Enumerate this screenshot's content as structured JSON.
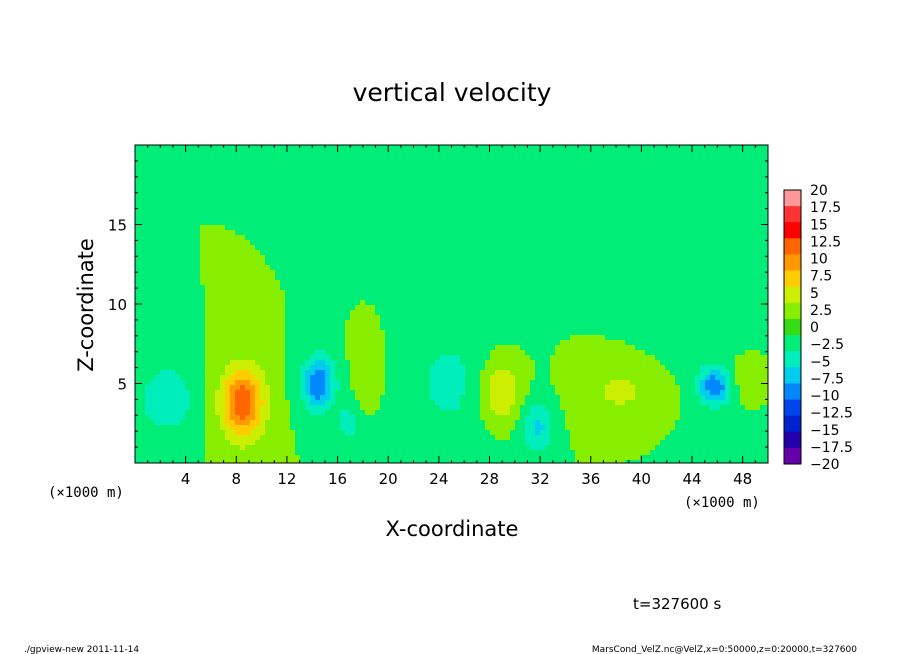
{
  "chart_data": {
    "type": "heatmap",
    "title": "vertical velocity",
    "xlabel": "X-coordinate",
    "ylabel": "Z-coordinate",
    "x_unit_label": "(×1000 m)",
    "y_unit_label": "(×1000 m)",
    "xlim": [
      0,
      50
    ],
    "ylim": [
      0,
      20
    ],
    "x_ticks": [
      4,
      8,
      12,
      16,
      20,
      24,
      28,
      32,
      36,
      40,
      44,
      48
    ],
    "y_ticks": [
      5,
      10,
      15
    ],
    "time_label": "t=327600 s",
    "colorbar": {
      "levels": [
        20,
        17.5,
        15,
        12.5,
        10,
        7.5,
        5,
        2.5,
        0,
        -2.5,
        -5,
        -7.5,
        -10,
        -12.5,
        -15,
        -17.5,
        -20
      ],
      "level_labels": [
        "20",
        "17.5",
        "15",
        "12.5",
        "10",
        "7.5",
        "5",
        "2.5",
        "0",
        "−2.5",
        "−5",
        "−7.5",
        "−10",
        "−12.5",
        "−15",
        "−17.5",
        "−20"
      ],
      "colors": [
        "#ff9999",
        "#ff3333",
        "#ff0000",
        "#ff6600",
        "#ff9900",
        "#ffcc00",
        "#ccee00",
        "#88ee00",
        "#33dd11",
        "#00ee77",
        "#00eebb",
        "#00ccee",
        "#0088ff",
        "#0044ee",
        "#0022cc",
        "#2200aa",
        "#6600aa"
      ]
    },
    "features": [
      {
        "x": 8.5,
        "z": 3.8,
        "w_peak": 12,
        "sx": 1.2,
        "sz": 1.6
      },
      {
        "x": 28.8,
        "z": 4.5,
        "w_peak": 6,
        "sx": 1.2,
        "sz": 1.5
      },
      {
        "x": 38.5,
        "z": 4.5,
        "w_peak": 3,
        "sx": 2.5,
        "sz": 1.5
      },
      {
        "x": 14.5,
        "z": 5.0,
        "w_peak": -10,
        "sx": 0.9,
        "sz": 1.2
      },
      {
        "x": 45.8,
        "z": 4.8,
        "w_peak": -9,
        "sx": 0.9,
        "sz": 0.8
      },
      {
        "x": 2.5,
        "z": 4.0,
        "w_peak": -5,
        "sx": 1.5,
        "sz": 1.5
      },
      {
        "x": 31.8,
        "z": 2.2,
        "w_peak": -5.5,
        "sx": 0.9,
        "sz": 1.2
      },
      {
        "x": 16.8,
        "z": 2.5,
        "w_peak": -4,
        "sx": 0.6,
        "sz": 0.8
      },
      {
        "x": 25.0,
        "z": 5.0,
        "w_peak": -3,
        "sx": 3.0,
        "sz": 3.0
      },
      {
        "x": 18.5,
        "z": 6.0,
        "w_peak": 2.5,
        "sx": 0.8,
        "sz": 1.5
      },
      {
        "x": 48.5,
        "z": 5.5,
        "w_peak": 3,
        "sx": 1.0,
        "sz": 1.0
      },
      {
        "x": 45.0,
        "z": 12.0,
        "w_peak": -2,
        "sx": 4.0,
        "sz": 5.0
      }
    ]
  },
  "footer": {
    "left": "./gpview-new  2011-11-14",
    "right": "MarsCond_VelZ.nc@VelZ,x=0:50000,z=0:20000,t=327600"
  }
}
